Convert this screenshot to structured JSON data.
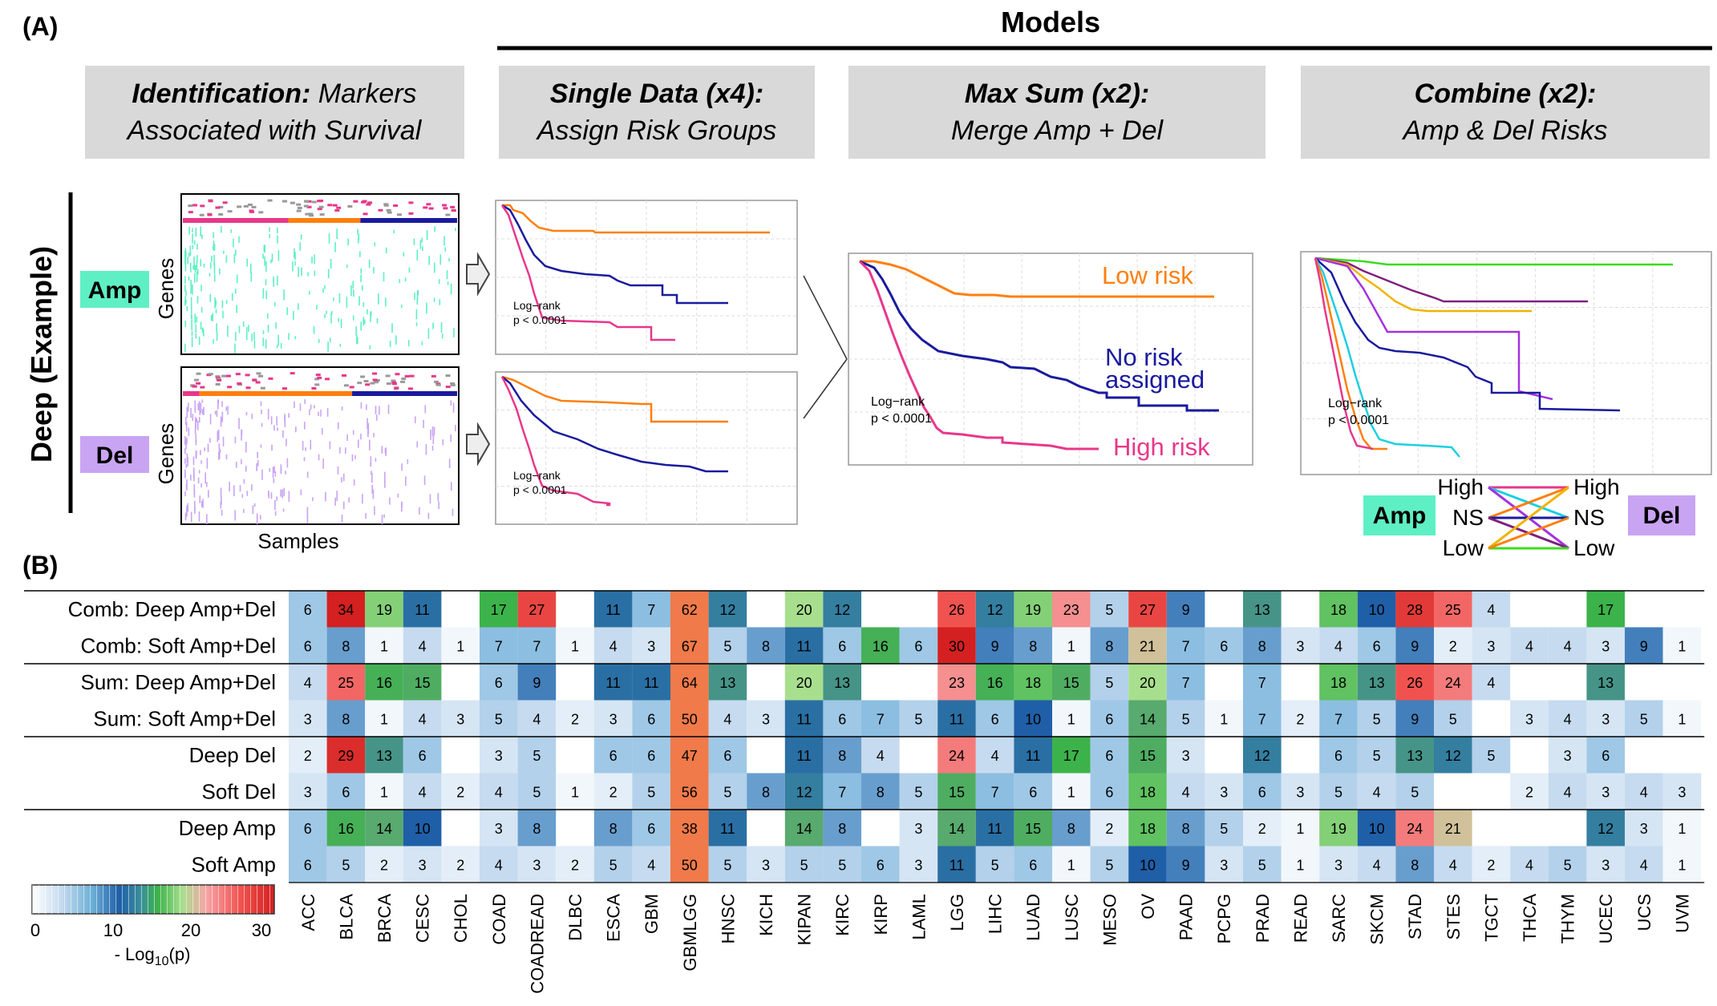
{
  "panel_a": {
    "label": "(A)",
    "models_title": "Models",
    "headers": [
      {
        "bold": "Identification:",
        "rest": "Markers",
        "line2": "Associated with Survival"
      },
      {
        "bold": "Single Data (x4):",
        "rest": "",
        "line2": "Assign Risk Groups"
      },
      {
        "bold": "Max Sum (x2):",
        "rest": "",
        "line2": "Merge Amp + Del"
      },
      {
        "bold": "Combine (x2):",
        "rest": "",
        "line2": "Amp & Del Risks"
      }
    ],
    "side_label": "Deep (Example)",
    "amp_label": "Amp",
    "del_label": "Del",
    "genes_label": "Genes",
    "samples_label": "Samples",
    "logrank_line1": "Log−rank",
    "logrank_line2": "p < 0.0001",
    "low_risk": "Low risk",
    "no_risk_1": "No risk",
    "no_risk_2": "assigned",
    "high_risk": "High risk",
    "combine_key": {
      "high": "High",
      "ns": "NS",
      "low": "Low",
      "amp": "Amp",
      "del": "Del"
    },
    "colors": {
      "amp": "#5ef0c4",
      "del": "#c9a4f2",
      "orange": "#ff7f0e",
      "navy": "#1a1a9e",
      "pink": "#e8378a",
      "header_bg": "#d9d9d9"
    }
  },
  "panel_b": {
    "label": "(B)",
    "legend_ticks": [
      "0",
      "10",
      "20",
      "30"
    ],
    "legend_label_prefix": "- Log",
    "legend_label_sub": "10",
    "legend_label_suffix": "(p)"
  },
  "chart_data": {
    "type": "heatmap",
    "value_range": [
      0,
      30
    ],
    "columns": [
      "ACC",
      "BLCA",
      "BRCA",
      "CESC",
      "CHOL",
      "COAD",
      "COADREAD",
      "DLBC",
      "ESCA",
      "GBM",
      "GBMLGG",
      "HNSC",
      "KICH",
      "KIPAN",
      "KIRC",
      "KIRP",
      "LAML",
      "LGG",
      "LIHC",
      "LUAD",
      "LUSC",
      "MESO",
      "OV",
      "PAAD",
      "PCPG",
      "PRAD",
      "READ",
      "SARC",
      "SKCM",
      "STAD",
      "STES",
      "TGCT",
      "THCA",
      "THYM",
      "UCEC",
      "UCS",
      "UVM"
    ],
    "rows": [
      {
        "name": "Comb: Deep Amp+Del",
        "values": [
          6,
          34,
          19,
          11,
          null,
          17,
          27,
          null,
          11,
          7,
          62,
          12,
          null,
          20,
          12,
          null,
          null,
          26,
          12,
          19,
          23,
          5,
          27,
          9,
          null,
          13,
          null,
          18,
          10,
          28,
          25,
          4,
          null,
          null,
          17,
          null,
          null
        ]
      },
      {
        "name": "Comb: Soft Amp+Del",
        "values": [
          6,
          8,
          1,
          4,
          1,
          7,
          7,
          1,
          4,
          3,
          67,
          5,
          8,
          11,
          6,
          16,
          6,
          30,
          9,
          8,
          1,
          8,
          21,
          7,
          6,
          8,
          3,
          4,
          6,
          9,
          2,
          3,
          4,
          4,
          3,
          9,
          1
        ]
      },
      {
        "name": "Sum: Deep Amp+Del",
        "values": [
          4,
          25,
          16,
          15,
          null,
          6,
          9,
          null,
          11,
          11,
          64,
          13,
          null,
          20,
          13,
          null,
          null,
          23,
          16,
          18,
          15,
          5,
          20,
          7,
          null,
          7,
          null,
          18,
          13,
          26,
          24,
          4,
          null,
          null,
          13,
          null,
          null
        ]
      },
      {
        "name": "Sum: Soft Amp+Del",
        "values": [
          3,
          8,
          1,
          4,
          3,
          5,
          4,
          2,
          3,
          6,
          50,
          4,
          3,
          11,
          6,
          7,
          5,
          11,
          6,
          10,
          1,
          6,
          14,
          5,
          1,
          7,
          2,
          7,
          5,
          9,
          5,
          null,
          3,
          4,
          3,
          5,
          1
        ]
      },
      {
        "name": "Deep Del",
        "values": [
          2,
          29,
          13,
          6,
          null,
          3,
          5,
          null,
          6,
          6,
          47,
          6,
          null,
          11,
          8,
          4,
          null,
          24,
          4,
          11,
          17,
          6,
          15,
          3,
          null,
          12,
          null,
          6,
          5,
          13,
          12,
          5,
          null,
          3,
          6,
          null,
          null
        ]
      },
      {
        "name": "Soft Del",
        "values": [
          3,
          6,
          1,
          4,
          2,
          4,
          5,
          1,
          2,
          5,
          56,
          5,
          8,
          12,
          7,
          8,
          5,
          15,
          7,
          6,
          1,
          6,
          18,
          4,
          3,
          6,
          3,
          5,
          4,
          5,
          null,
          null,
          2,
          4,
          3,
          4,
          3
        ]
      },
      {
        "name": "Deep Amp",
        "values": [
          6,
          16,
          14,
          10,
          null,
          3,
          8,
          null,
          8,
          6,
          38,
          11,
          null,
          14,
          8,
          null,
          3,
          14,
          11,
          15,
          8,
          2,
          18,
          8,
          5,
          2,
          1,
          19,
          10,
          24,
          21,
          null,
          null,
          null,
          12,
          3,
          1
        ]
      },
      {
        "name": "Soft Amp",
        "values": [
          6,
          5,
          2,
          3,
          2,
          4,
          3,
          2,
          5,
          4,
          50,
          5,
          3,
          5,
          5,
          6,
          3,
          11,
          5,
          6,
          1,
          5,
          10,
          9,
          3,
          5,
          1,
          3,
          4,
          8,
          4,
          2,
          4,
          5,
          3,
          4,
          1
        ]
      }
    ]
  }
}
